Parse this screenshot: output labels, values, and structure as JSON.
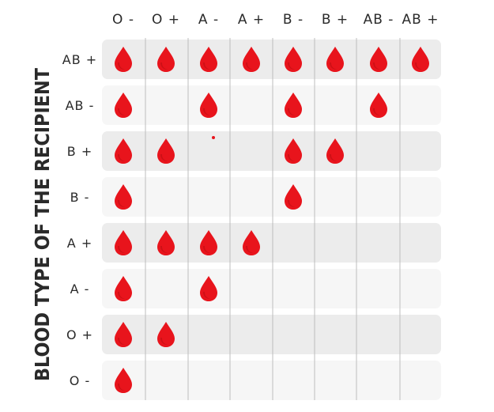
{
  "chart_data": {
    "type": "table",
    "ylabel": "BLOOD TYPE OF THE RECIPIENT",
    "columns": [
      "O -",
      "O +",
      "A -",
      "A +",
      "B -",
      "B +",
      "AB -",
      "AB +"
    ],
    "rows": [
      {
        "label": "AB +",
        "compatible": [
          1,
          1,
          1,
          1,
          1,
          1,
          1,
          1
        ]
      },
      {
        "label": "AB -",
        "compatible": [
          1,
          0,
          1,
          0,
          1,
          0,
          1,
          0
        ]
      },
      {
        "label": "B +",
        "compatible": [
          1,
          1,
          0,
          0,
          1,
          1,
          0,
          0
        ]
      },
      {
        "label": "B -",
        "compatible": [
          1,
          0,
          0,
          0,
          1,
          0,
          0,
          0
        ]
      },
      {
        "label": "A +",
        "compatible": [
          1,
          1,
          1,
          1,
          0,
          0,
          0,
          0
        ]
      },
      {
        "label": "A -",
        "compatible": [
          1,
          0,
          1,
          0,
          0,
          0,
          0,
          0
        ]
      },
      {
        "label": "O +",
        "compatible": [
          1,
          1,
          0,
          0,
          0,
          0,
          0,
          0
        ]
      },
      {
        "label": "O -",
        "compatible": [
          1,
          0,
          0,
          0,
          0,
          0,
          0,
          0
        ]
      }
    ],
    "colors": {
      "drop": "#e8141c",
      "drop_shade": "#b80d12",
      "row_dark": "#ececec",
      "row_light": "#f6f6f6",
      "divider": "#bdbdbd",
      "text": "#2a2a2a"
    }
  }
}
